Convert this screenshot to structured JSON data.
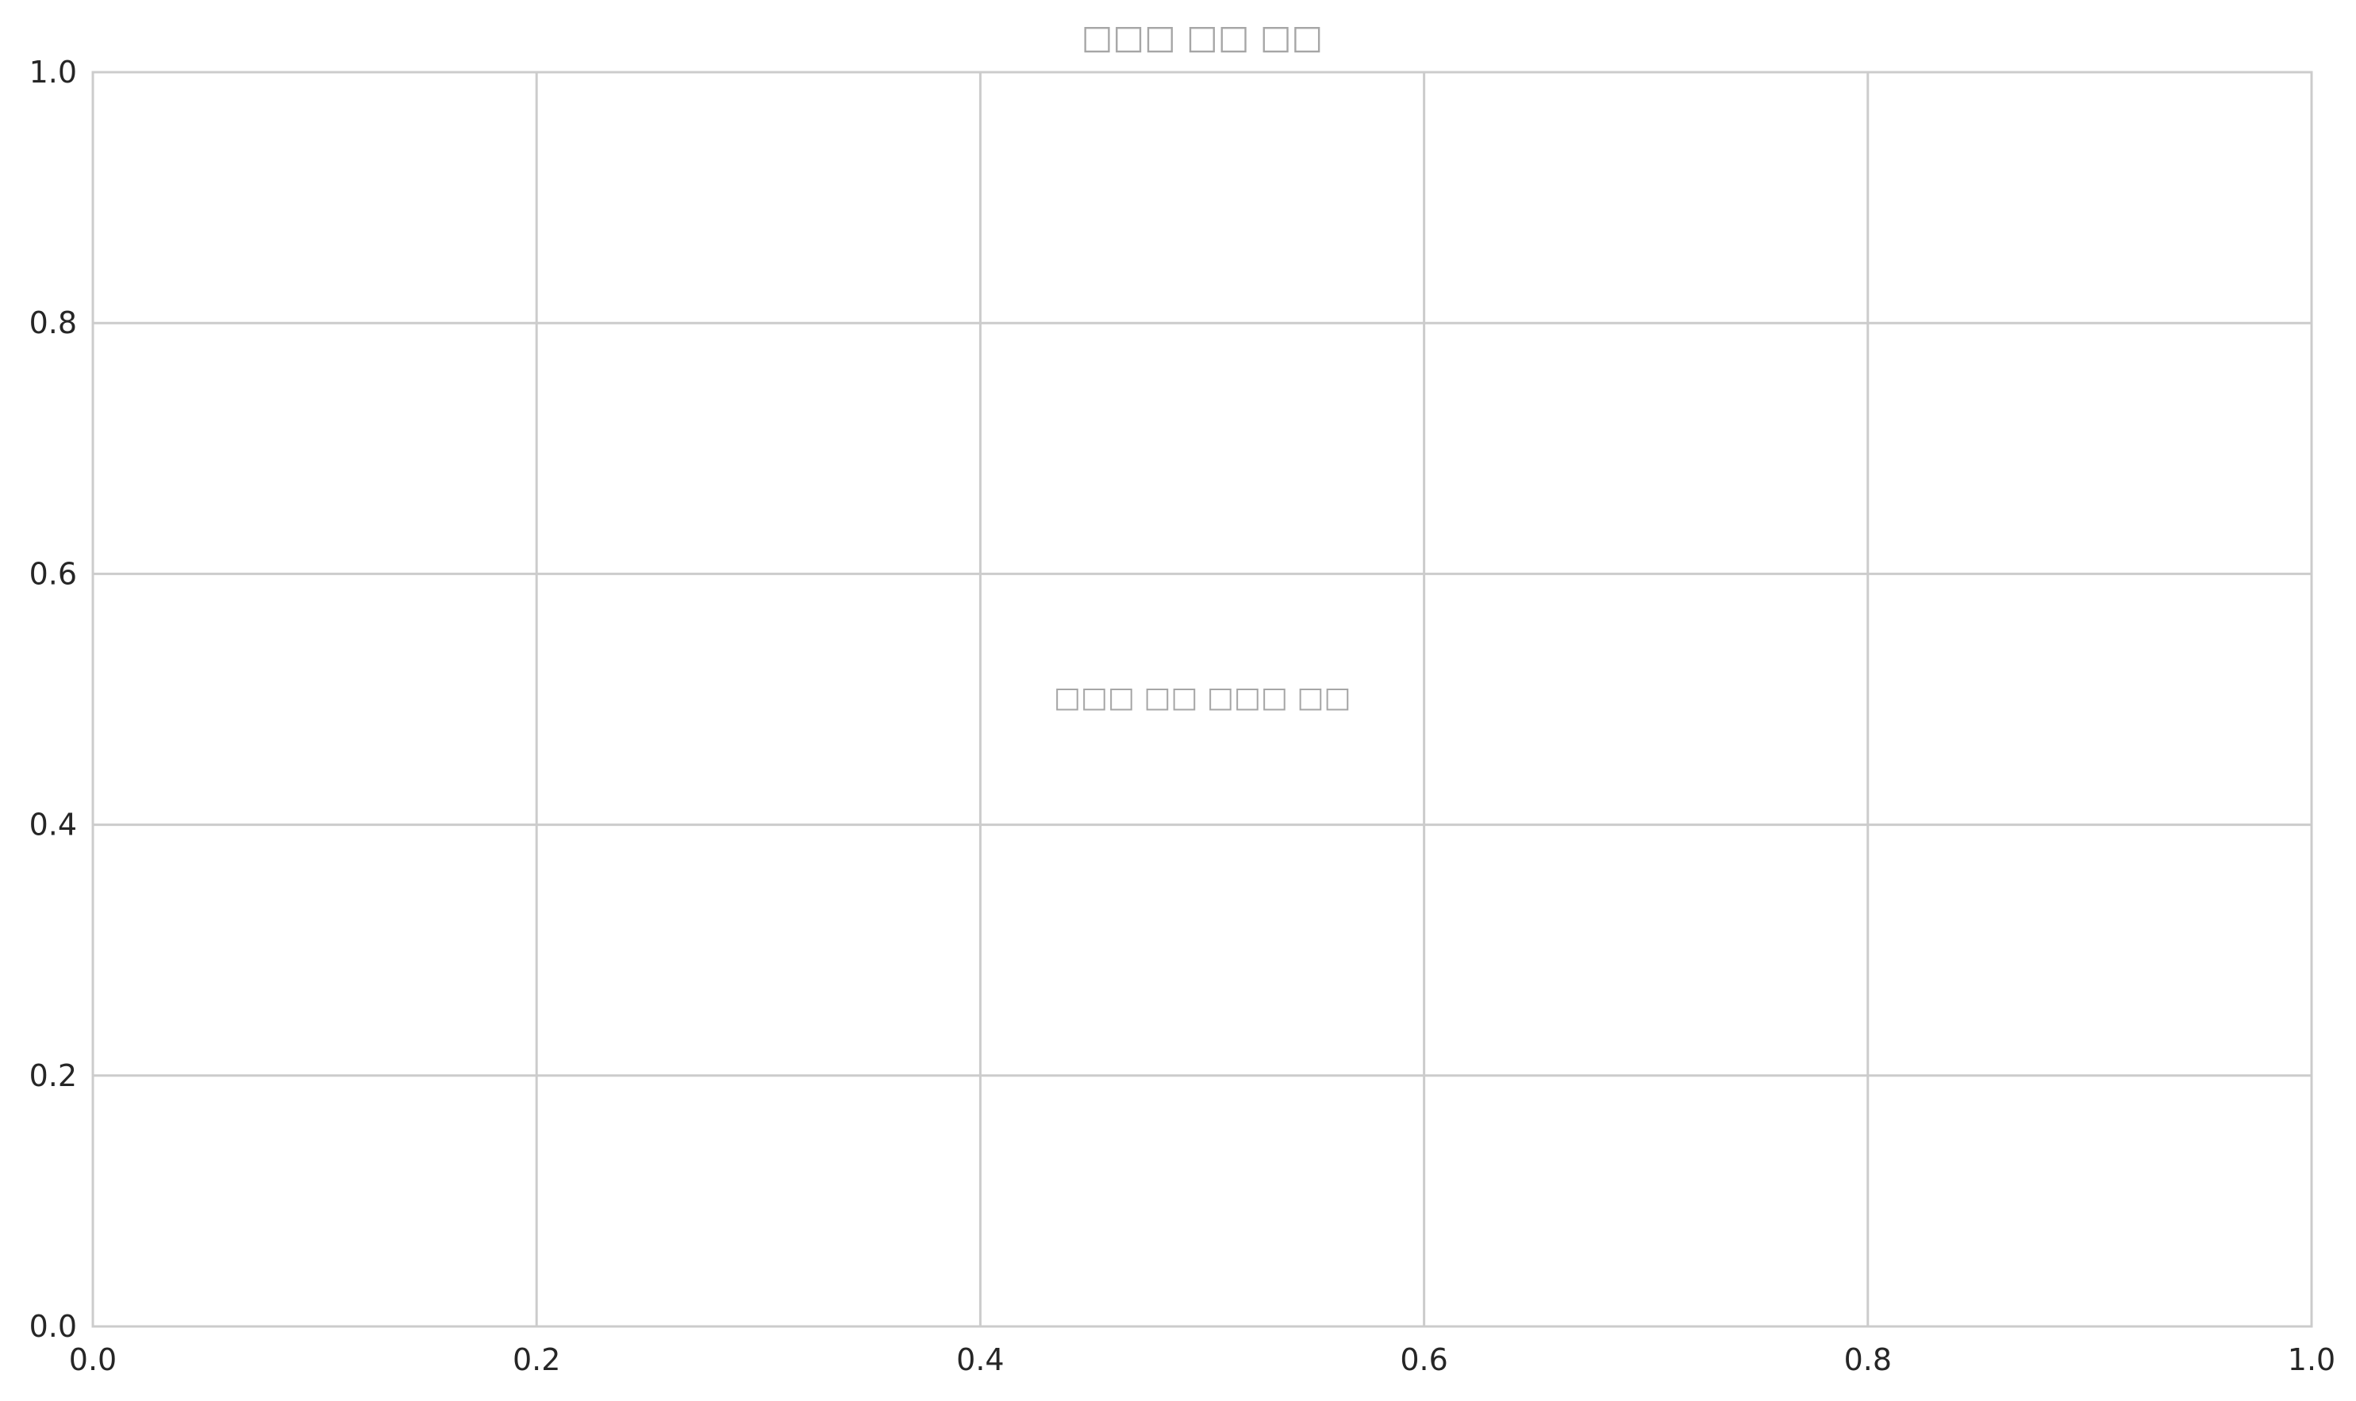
{
  "chart_data": {
    "type": "line",
    "title": "□□□ □□ □□",
    "placeholder": "□□□ □□ □□□ □□",
    "xlabel": "",
    "ylabel": "",
    "xlim": [
      0.0,
      1.0
    ],
    "ylim": [
      0.0,
      1.0
    ],
    "x_ticks": [
      "0.0",
      "0.2",
      "0.4",
      "0.6",
      "0.8",
      "1.0"
    ],
    "y_ticks": [
      "0.0",
      "0.2",
      "0.4",
      "0.6",
      "0.8",
      "1.0"
    ],
    "series": [],
    "grid": true,
    "colors": {
      "grid": "#cccccc",
      "spine": "#cccccc",
      "tick_text": "#262626",
      "muted_text": "#a6a6a6"
    }
  }
}
